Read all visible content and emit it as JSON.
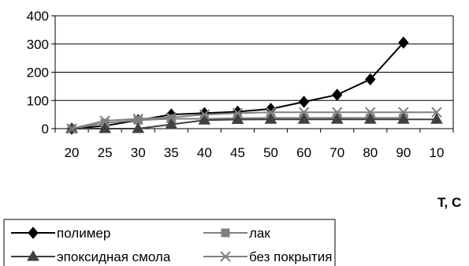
{
  "chart_data": {
    "type": "line",
    "categories": [
      "20",
      "25",
      "30",
      "35",
      "40",
      "45",
      "50",
      "60",
      "70",
      "80",
      "90",
      "10"
    ],
    "xlabel": "T, C",
    "ylabel": "",
    "ylim": [
      0,
      400
    ],
    "yticks": [
      0,
      100,
      200,
      300,
      400
    ],
    "grid": "horizontal",
    "legend_position": "bottom",
    "series": [
      {
        "name": "полимер",
        "marker": "diamond",
        "color": "#000000",
        "values": [
          0,
          10,
          30,
          50,
          55,
          60,
          70,
          95,
          120,
          175,
          305,
          null
        ]
      },
      {
        "name": "лак",
        "marker": "square",
        "color": "#808080",
        "values": [
          0,
          20,
          30,
          35,
          35,
          37,
          38,
          38,
          38,
          38,
          38,
          null
        ]
      },
      {
        "name": "эпоксидная смола",
        "marker": "triangle",
        "color": "#404040",
        "values": [
          0,
          0,
          0,
          15,
          30,
          32,
          33,
          33,
          33,
          33,
          33,
          33
        ]
      },
      {
        "name": "без покрытия",
        "marker": "x",
        "color": "#808080",
        "values": [
          0,
          28,
          35,
          40,
          50,
          55,
          58,
          58,
          58,
          58,
          58,
          58
        ]
      }
    ]
  }
}
